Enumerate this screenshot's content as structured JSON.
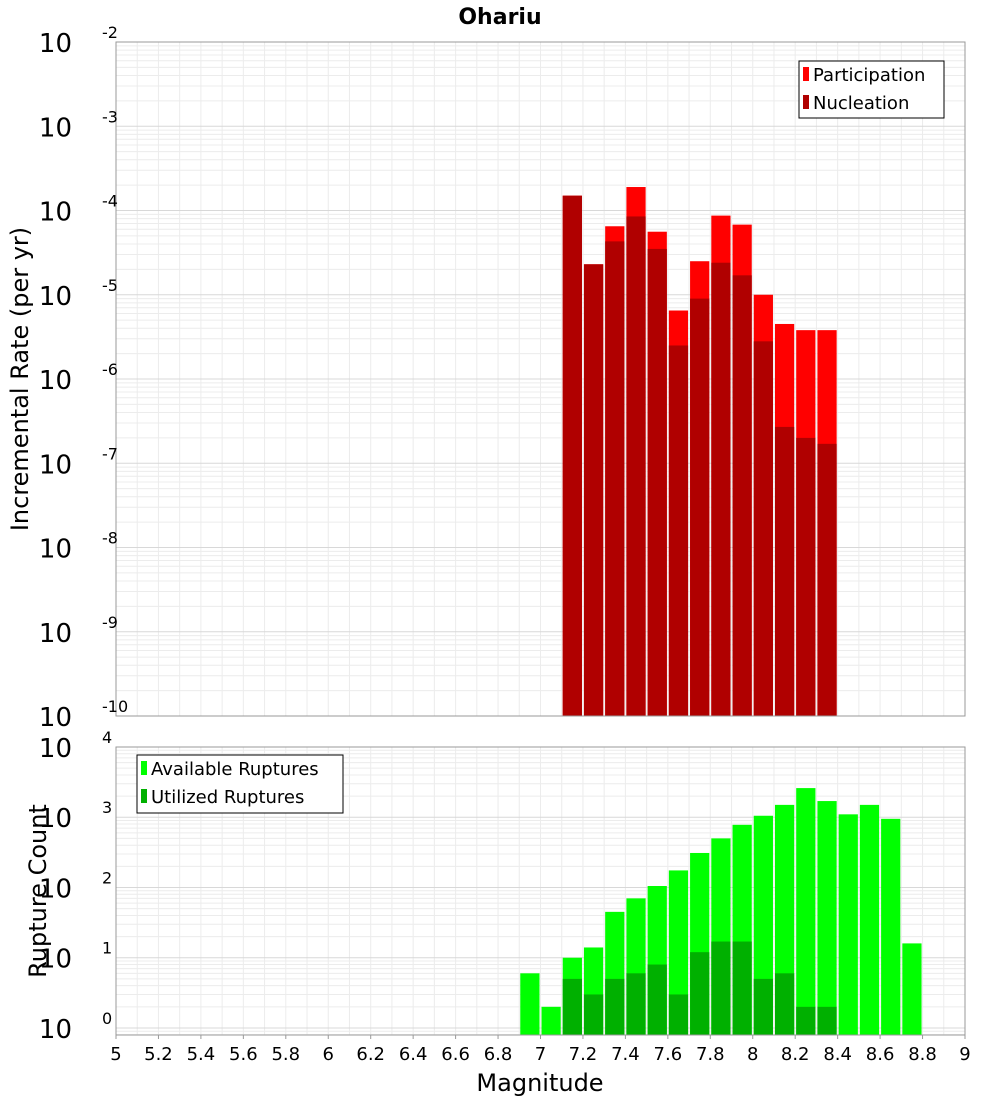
{
  "title": "Ohariu",
  "chart_data": [
    {
      "type": "bar",
      "id": "rate-plot",
      "scale": "log",
      "xlabel": "Magnitude",
      "ylabel": "Incremental Rate (per yr)",
      "xlim": [
        5,
        9
      ],
      "ylim_exp": [
        -10,
        -2
      ],
      "y_tick_exponents": [
        "-10",
        "-9",
        "-8",
        "-7",
        "-6",
        "-5",
        "-4",
        "-3",
        "-2"
      ],
      "bin_width": 0.1,
      "legend": {
        "position": "top-right"
      },
      "series": [
        {
          "name": "Participation",
          "color": "#ff0000",
          "x": [
            7.15,
            7.25,
            7.35,
            7.45,
            7.55,
            7.65,
            7.75,
            7.85,
            7.95,
            8.05,
            8.15,
            8.25,
            8.35
          ],
          "values": [
            0.00015,
            2.3e-05,
            6.5e-05,
            0.00019,
            5.6e-05,
            6.5e-06,
            2.5e-05,
            8.7e-05,
            6.8e-05,
            1e-05,
            4.5e-06,
            3.8e-06,
            3.8e-06
          ]
        },
        {
          "name": "Nucleation",
          "color": "#b00000",
          "x": [
            7.15,
            7.25,
            7.35,
            7.45,
            7.55,
            7.65,
            7.75,
            7.85,
            7.95,
            8.05,
            8.15,
            8.25,
            8.35
          ],
          "values": [
            0.00015,
            2.3e-05,
            4.3e-05,
            8.5e-05,
            3.5e-05,
            2.5e-06,
            9e-06,
            2.4e-05,
            1.7e-05,
            2.8e-06,
            2.7e-07,
            2e-07,
            1.7e-07
          ]
        }
      ]
    },
    {
      "type": "bar",
      "id": "count-plot",
      "scale": "log",
      "xlabel": "Magnitude",
      "ylabel": "Rupture Count",
      "xlim": [
        5,
        9
      ],
      "ylim_exp": [
        -0.1,
        4
      ],
      "y_tick_exponents": [
        "0",
        "1",
        "2",
        "3",
        "4"
      ],
      "x_tick_labels": [
        "5",
        "5.2",
        "5.4",
        "5.6",
        "5.8",
        "6",
        "6.2",
        "6.4",
        "6.6",
        "6.8",
        "7",
        "7.2",
        "7.4",
        "7.6",
        "7.8",
        "8",
        "8.2",
        "8.4",
        "8.6",
        "8.8",
        "9"
      ],
      "bin_width": 0.1,
      "legend": {
        "position": "top-left"
      },
      "series": [
        {
          "name": "Available Ruptures",
          "color": "#00ff00",
          "x": [
            6.95,
            7.05,
            7.15,
            7.25,
            7.35,
            7.45,
            7.55,
            7.65,
            7.75,
            7.85,
            7.95,
            8.05,
            8.15,
            8.25,
            8.35,
            8.45,
            8.55,
            8.65,
            8.75
          ],
          "values": [
            6,
            2,
            10,
            14,
            45,
            70,
            105,
            175,
            310,
            500,
            780,
            1050,
            1500,
            2600,
            1700,
            1100,
            1500,
            950,
            16
          ]
        },
        {
          "name": "Utilized Ruptures",
          "color": "#00b000",
          "x": [
            7.15,
            7.25,
            7.35,
            7.45,
            7.55,
            7.65,
            7.75,
            7.85,
            7.95,
            8.05,
            8.15,
            8.25,
            8.35
          ],
          "values": [
            5,
            3,
            5,
            6,
            8,
            3,
            12,
            17,
            17,
            5,
            6,
            2,
            2
          ]
        }
      ]
    }
  ]
}
